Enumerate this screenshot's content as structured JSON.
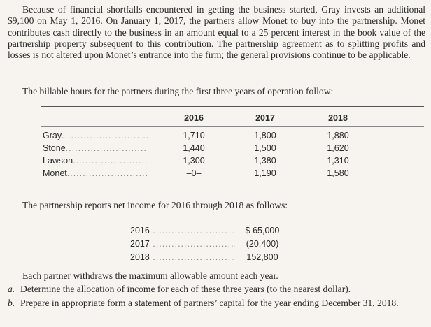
{
  "intro_paragraph": "Because of financial shortfalls encountered in getting the business started, Gray invests an additional $9,100 on May 1, 2016. On January 1, 2017, the partners allow Monet to buy into the partnership. Monet contributes cash directly to the business in an amount equal to a 25 percent interest in the book value of the partnership property subsequent to this contribution. The partnership agreement as to splitting profits and losses is not altered upon Monet’s entrance into the firm; the general provisions continue to be applicable.",
  "hours_intro": "The billable hours for the partners during the first three years of operation follow:",
  "hours_table": {
    "columns": [
      "2016",
      "2017",
      "2018"
    ],
    "rows": [
      {
        "partner": "Gray",
        "values": [
          "1,710",
          "1,800",
          "1,880"
        ]
      },
      {
        "partner": "Stone",
        "values": [
          "1,440",
          "1,500",
          "1,620"
        ]
      },
      {
        "partner": "Lawson",
        "values": [
          "1,300",
          "1,380",
          "1,310"
        ]
      },
      {
        "partner": "Monet",
        "values": [
          "–0–",
          "1,190",
          "1,580"
        ]
      }
    ]
  },
  "income_intro": "The partnership reports net income for 2016 through 2018 as follows:",
  "income": [
    {
      "year": "2016",
      "amount": "$ 65,000"
    },
    {
      "year": "2017",
      "amount": "(20,400)"
    },
    {
      "year": "2018",
      "amount": "152,800"
    }
  ],
  "withdrawals_note": "Each partner withdraws the maximum allowable amount each year.",
  "questions": [
    {
      "label": "a.",
      "text": "Determine the allocation of income for each of these three years (to the nearest dollar)."
    },
    {
      "label": "b.",
      "text": "Prepare in appropriate form a statement of partners’ capital for the year ending December 31, 2018."
    }
  ]
}
